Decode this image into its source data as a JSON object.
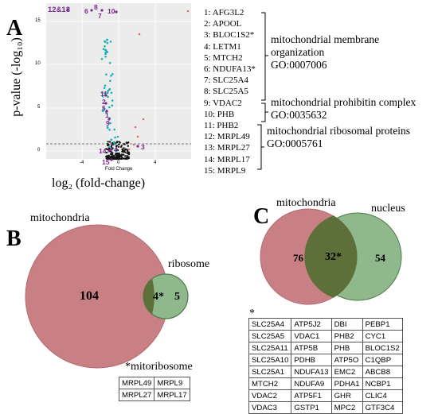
{
  "panels": {
    "A": "A",
    "B": "B",
    "C": "C"
  },
  "volcano": {
    "ylabel": "p-value  (-log₁₀)",
    "xlabel": "log₂ (fold-change)",
    "inner_xlabel": "Fold Change",
    "y_ticks": [
      "15",
      "10",
      "5",
      "0"
    ],
    "x_ticks": [
      "-4",
      "0",
      "4"
    ],
    "point_labels": {
      "top_left": "12&13",
      "top_mid_a": "6",
      "top_mid_b": "8",
      "top_mid_c": "10",
      "top_mid_d": "7",
      "n11": "11",
      "n2": "2",
      "n5": "5",
      "n1": "1",
      "n9": "9",
      "n3": "3",
      "n14": "14",
      "n4": "4",
      "n15": "15"
    }
  },
  "gene_list": [
    "1:  AFG3L2",
    "2:  APOOL",
    "3:  BLOC1S2*",
    "4:  LETM1",
    "5:  MTCH2",
    "6:  NDUFA13*",
    "7:  SLC25A4",
    "8:  SLC25A5",
    "9:  VDAC2",
    "10: PHB",
    "11: PHB2",
    "12: MRPL49",
    "13: MRPL27",
    "14: MRPL17",
    "15: MRPL9"
  ],
  "go_groups": [
    {
      "lines": [
        "mitochondrial membrane",
        "organization",
        "GO:0007006"
      ]
    },
    {
      "lines": [
        "mitochondrial prohibitin complex",
        "GO:0035632"
      ]
    },
    {
      "lines": [
        "mitochondrial ribosomal proteins",
        "GO:0005761"
      ]
    }
  ],
  "venn_b": {
    "left_label": "mitochondria",
    "right_label": "ribosome",
    "left_only": "104",
    "overlap": "4*",
    "right_only": "5",
    "footnote": "*mitoribosome",
    "table": [
      [
        "MRPL49",
        "MRPL9"
      ],
      [
        "MRPL27",
        "MRPL17"
      ]
    ]
  },
  "venn_c": {
    "left_label": "mitochondria",
    "right_label": "nucleus",
    "left_only": "76",
    "overlap": "32*",
    "right_only": "54",
    "footnote": "*",
    "table": [
      [
        "SLC25A4",
        "ATP5J2",
        "DBI",
        "PEBP1"
      ],
      [
        "SLC25A5",
        "VDAC1",
        "PHB2",
        "CYC1"
      ],
      [
        "SLC25A11",
        "ATP5B",
        "PHB",
        "BLOC1S2"
      ],
      [
        "SLC25A10",
        "PDHB",
        "ATP5O",
        "C1QBP"
      ],
      [
        "SLC25A1",
        "NDUFA13",
        "EMC2",
        "ABCB8"
      ],
      [
        "MTCH2",
        "NDUFA9",
        "PDHA1",
        "NCBP1"
      ],
      [
        "VDAC2",
        "ATP5F1",
        "GHR",
        "CLIC4"
      ],
      [
        "VDAC3",
        "GSTP1",
        "MPC2",
        "GTF3C4"
      ]
    ]
  },
  "colors": {
    "highlight": "#1ab0b8",
    "label_purple": "#7a2a8e",
    "up_red": "#e86a6a",
    "venn_red": "#c98084",
    "venn_green": "#8fb98c",
    "venn_overlap": "#5e7039"
  }
}
